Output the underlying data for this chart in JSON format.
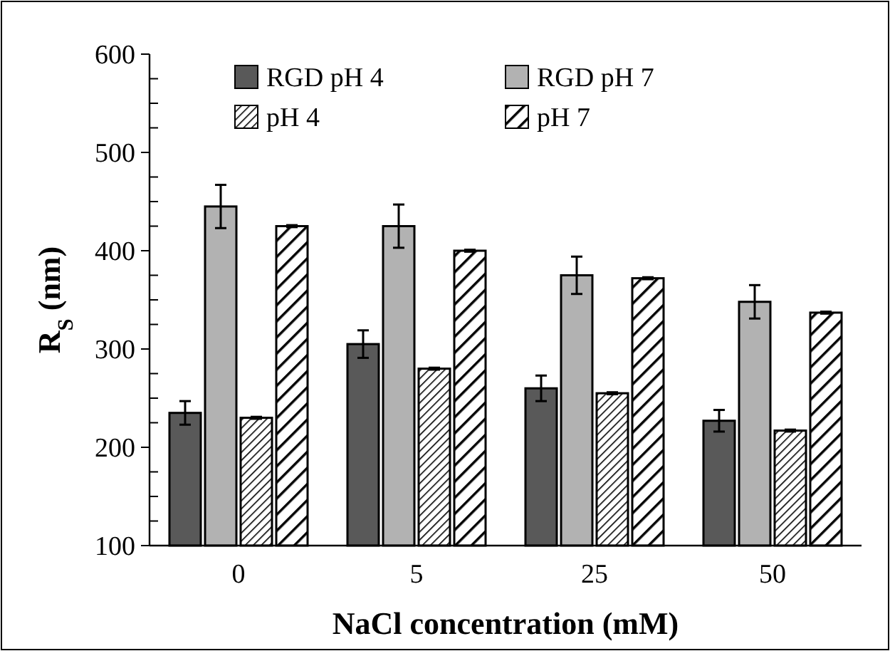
{
  "chart_data": {
    "type": "bar",
    "xlabel": "NaCl concentration (mM)",
    "ylabel": "R$_{S}$ (nm)",
    "categories": [
      "0",
      "5",
      "25",
      "50"
    ],
    "series": [
      {
        "name": "RGD pH 4",
        "color": "#595959",
        "values": [
          235,
          305,
          260,
          227
        ],
        "errors": [
          12,
          14,
          13,
          11
        ]
      },
      {
        "name": "RGD pH 7",
        "color": "#b2b2b2",
        "values": [
          445,
          425,
          375,
          348
        ],
        "errors": [
          22,
          22,
          19,
          17
        ]
      },
      {
        "name": "pH 4",
        "color": "#000000",
        "values": [
          230,
          280,
          255,
          217
        ],
        "errors": [
          1,
          1,
          1,
          1
        ]
      },
      {
        "name": "pH 7",
        "color": "#000000",
        "values": [
          425,
          400,
          372,
          337
        ],
        "errors": [
          1,
          1,
          1,
          1
        ]
      }
    ],
    "ylim": [
      100,
      600
    ],
    "yticks": [
      100,
      {
        "value": 125,
        "label": null
      },
      {
        "value": 150,
        "label": null
      },
      {
        "value": 175,
        "label": null
      },
      200,
      {
        "value": 225,
        "label": null
      },
      {
        "value": 250,
        "label": null
      },
      {
        "value": 275,
        "label": null
      },
      300,
      {
        "value": 325,
        "label": null
      },
      {
        "value": 350,
        "label": null
      },
      {
        "value": 375,
        "label": null
      },
      400,
      {
        "value": 425,
        "label": null
      },
      {
        "value": 450,
        "label": null
      },
      {
        "value": 475,
        "label": null
      },
      500,
      {
        "value": 525,
        "label": null
      },
      {
        "value": 550,
        "label": null
      },
      {
        "value": 575,
        "label": null
      },
      600
    ],
    "grid": false,
    "legend": "top"
  }
}
